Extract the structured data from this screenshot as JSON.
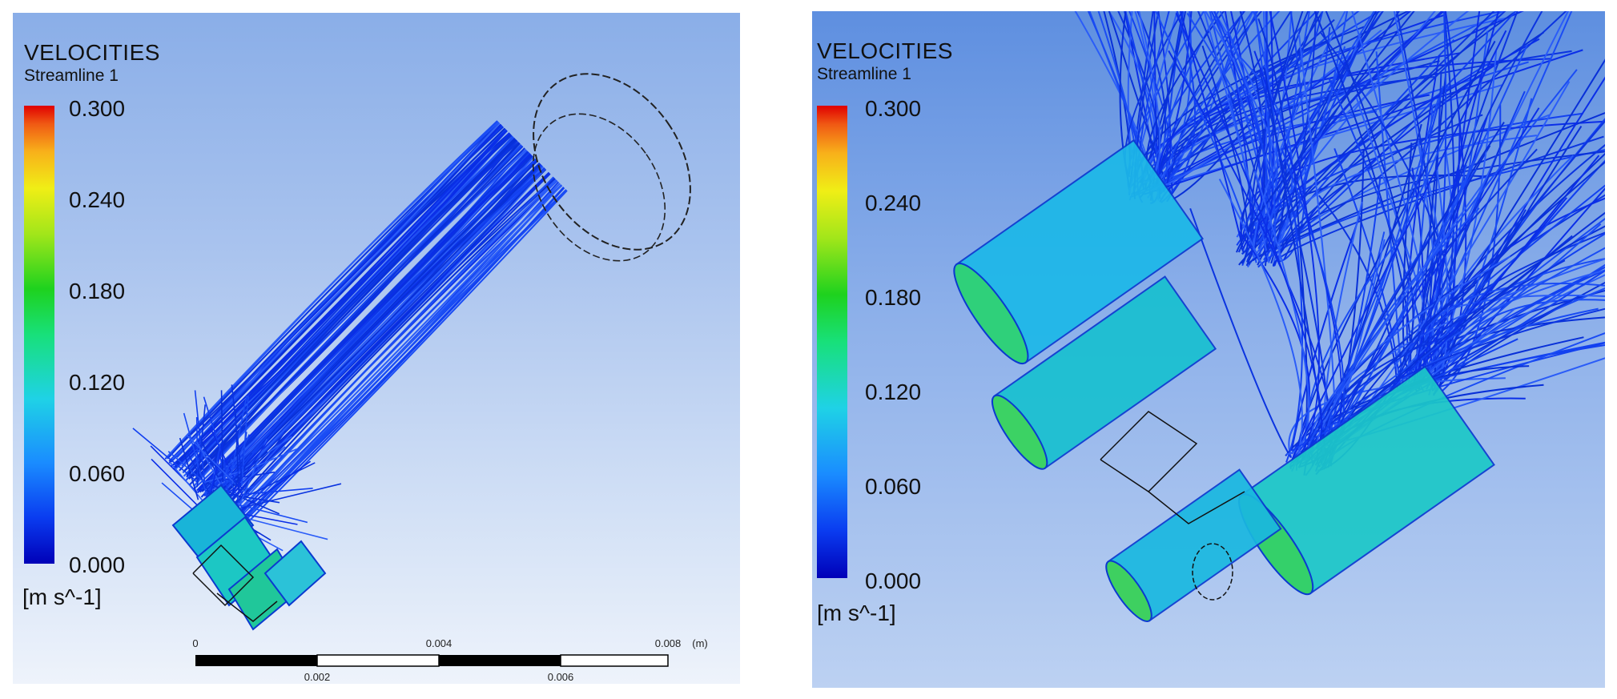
{
  "left_panel": {
    "legend": {
      "title": "VELOCITIES",
      "subtitle": "Streamline 1",
      "ticks": [
        "0.300",
        "0.240",
        "0.180",
        "0.120",
        "0.060",
        "0.000"
      ],
      "unit": "[m s^-1]"
    },
    "scale_bar": {
      "top_labels": [
        "0",
        "0.004",
        "0.008",
        "(m)"
      ],
      "bottom_labels": [
        "0.002",
        "0.006"
      ]
    }
  },
  "right_panel": {
    "legend": {
      "title": "VELOCITIES",
      "subtitle": "Streamline 1",
      "ticks": [
        "0.300",
        "0.240",
        "0.180",
        "0.120",
        "0.060",
        "0.000"
      ],
      "unit": "[m s^-1]"
    }
  },
  "colors": {
    "colormap_low": "#0000b8",
    "colormap_mid": "#1ed21e",
    "colormap_high": "#e00000",
    "streamline_blue": "#1a3cf0"
  }
}
